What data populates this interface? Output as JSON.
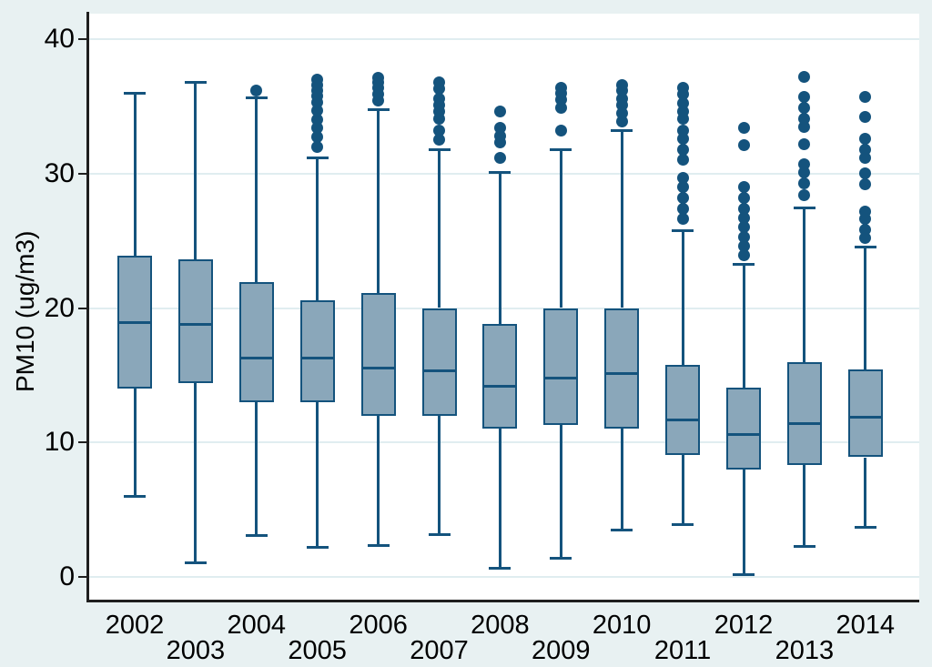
{
  "figure": {
    "background": "#e8f1f2",
    "plot_background": "#ffffff",
    "gridline_color": "#e0edf0",
    "axis_color": "#1f1f1f",
    "text_color": "#000000"
  },
  "chart_data": {
    "type": "box",
    "title": "",
    "xlabel": "",
    "ylabel": "PM10 (ug/m3)",
    "yticks": [
      0,
      10,
      20,
      30,
      40
    ],
    "ylim": [
      -1.8,
      41.9
    ],
    "grid": true,
    "legend": "none",
    "box_fill": "#8aa7ba",
    "box_line": "#14537d",
    "categories": [
      "2002",
      "2003",
      "2004",
      "2005",
      "2006",
      "2007",
      "2008",
      "2009",
      "2010",
      "2011",
      "2012",
      "2013",
      "2014"
    ],
    "series": [
      {
        "year": "2002",
        "low": 6.0,
        "q1": 14.0,
        "median": 18.9,
        "q3": 23.9,
        "high": 36.0,
        "outliers": []
      },
      {
        "year": "2003",
        "low": 1.1,
        "q1": 14.4,
        "median": 18.8,
        "q3": 23.6,
        "high": 36.8,
        "outliers": []
      },
      {
        "year": "2004",
        "low": 3.1,
        "q1": 13.0,
        "median": 16.3,
        "q3": 21.9,
        "high": 35.7,
        "outliers": [
          36.2
        ]
      },
      {
        "year": "2005",
        "low": 2.2,
        "q1": 13.0,
        "median": 16.3,
        "q3": 20.6,
        "high": 31.2,
        "outliers": [
          32.0,
          32.7,
          33.4,
          34.0,
          34.7,
          35.3,
          35.8,
          36.2,
          36.6,
          37.0
        ]
      },
      {
        "year": "2006",
        "low": 2.4,
        "q1": 12.0,
        "median": 15.5,
        "q3": 21.1,
        "high": 34.8,
        "outliers": [
          35.4,
          35.9,
          36.4,
          36.8,
          37.1
        ]
      },
      {
        "year": "2007",
        "low": 3.2,
        "q1": 12.0,
        "median": 15.3,
        "q3": 20.0,
        "high": 31.8,
        "outliers": [
          32.5,
          33.2,
          34.1,
          34.6,
          35.1,
          35.6,
          36.3,
          36.8
        ]
      },
      {
        "year": "2008",
        "low": 0.7,
        "q1": 11.0,
        "median": 14.2,
        "q3": 18.8,
        "high": 30.1,
        "outliers": [
          31.2,
          32.3,
          32.8,
          33.4,
          34.6
        ]
      },
      {
        "year": "2009",
        "low": 1.4,
        "q1": 11.3,
        "median": 14.8,
        "q3": 20.0,
        "high": 31.8,
        "outliers": [
          33.2,
          34.9,
          35.5,
          36.0,
          36.4
        ]
      },
      {
        "year": "2010",
        "low": 3.5,
        "q1": 11.0,
        "median": 15.1,
        "q3": 20.0,
        "high": 33.2,
        "outliers": [
          33.9,
          34.5,
          35.1,
          35.6,
          36.2,
          36.6
        ]
      },
      {
        "year": "2011",
        "low": 3.9,
        "q1": 9.1,
        "median": 11.7,
        "q3": 15.8,
        "high": 25.8,
        "outliers": [
          26.6,
          27.4,
          28.2,
          29.0,
          29.7,
          31.0,
          31.8,
          32.6,
          33.2,
          34.1,
          34.6,
          35.2,
          35.9,
          36.4
        ]
      },
      {
        "year": "2012",
        "low": 0.2,
        "q1": 8.0,
        "median": 10.6,
        "q3": 14.1,
        "high": 23.3,
        "outliers": [
          23.9,
          24.6,
          25.3,
          26.0,
          26.7,
          27.4,
          28.2,
          29.0,
          32.1,
          33.4
        ]
      },
      {
        "year": "2013",
        "low": 2.3,
        "q1": 8.3,
        "median": 11.4,
        "q3": 16.0,
        "high": 27.5,
        "outliers": [
          28.4,
          29.3,
          30.1,
          30.7,
          32.2,
          33.5,
          34.1,
          34.9,
          35.7,
          37.2
        ]
      },
      {
        "year": "2014",
        "low": 3.7,
        "q1": 8.9,
        "median": 11.9,
        "q3": 15.4,
        "high": 24.6,
        "outliers": [
          25.2,
          25.8,
          26.6,
          27.2,
          29.2,
          30.0,
          31.2,
          31.8,
          32.6,
          34.2,
          35.7
        ]
      }
    ]
  },
  "layout_note": "Stata-style box plot, staggered year labels on x axis"
}
